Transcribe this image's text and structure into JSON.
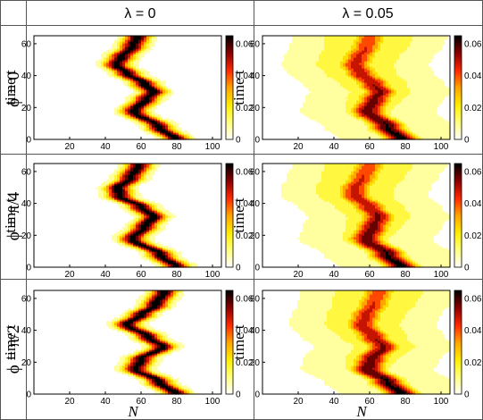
{
  "column_headers": [
    "λ = 0",
    "λ = 0.05"
  ],
  "row_headers": [
    "ϕ = 0",
    "ϕ = π/4",
    "ϕ = π/2"
  ],
  "y_axis_label": "time  t",
  "x_axis_label": "N",
  "colors": {
    "grid_line": "#555555",
    "axis": "#000000",
    "colormap": [
      "#ffffff",
      "#ffff80",
      "#ffee00",
      "#ffa500",
      "#ff2a00",
      "#8b0000",
      "#000000"
    ]
  },
  "chart_data": [
    {
      "type": "heatmap",
      "row": 0,
      "col": 0,
      "lambda": 0,
      "phi": "0",
      "xlim": [
        0,
        105
      ],
      "ylim": [
        0,
        65
      ],
      "xticks": [
        20,
        40,
        60,
        80,
        100
      ],
      "yticks": [
        0,
        20,
        40,
        60
      ],
      "colorbar": {
        "ticks": [
          0,
          0.02,
          0.04,
          0.06
        ],
        "tick_labels": [
          "0",
          "0.02",
          "0.04",
          "0.06"
        ],
        "max": 0.065
      },
      "ridge": [
        [
          0,
          80
        ],
        [
          8,
          70
        ],
        [
          18,
          56
        ],
        [
          26,
          63
        ],
        [
          30,
          67
        ],
        [
          35,
          62
        ],
        [
          42,
          52
        ],
        [
          47,
          46
        ],
        [
          52,
          49
        ],
        [
          58,
          55
        ],
        [
          65,
          58
        ]
      ],
      "width": 5.0,
      "peak": 0.065,
      "halo_spread": 0
    },
    {
      "type": "heatmap",
      "row": 0,
      "col": 1,
      "lambda": 0.05,
      "phi": "0",
      "xlim": [
        0,
        105
      ],
      "ylim": [
        0,
        65
      ],
      "xticks": [
        20,
        40,
        60,
        80,
        100
      ],
      "yticks": [
        0,
        20,
        40,
        60
      ],
      "colorbar": {
        "ticks": [
          0,
          0.02,
          0.04,
          0.06
        ],
        "tick_labels": [
          "0",
          "0.02",
          "0.04",
          "0.06"
        ],
        "max": 0.065
      },
      "ridge": [
        [
          0,
          78
        ],
        [
          8,
          70
        ],
        [
          18,
          59
        ],
        [
          26,
          63
        ],
        [
          30,
          66
        ],
        [
          35,
          62
        ],
        [
          42,
          55
        ],
        [
          47,
          52
        ],
        [
          52,
          54
        ],
        [
          58,
          58
        ],
        [
          65,
          60
        ]
      ],
      "width": 6.5,
      "peak": 0.065,
      "halo_spread": 24
    },
    {
      "type": "heatmap",
      "row": 1,
      "col": 0,
      "lambda": 0,
      "phi": "π/4",
      "xlim": [
        0,
        105
      ],
      "ylim": [
        0,
        65
      ],
      "xticks": [
        20,
        40,
        60,
        80,
        100
      ],
      "yticks": [
        0,
        20,
        40,
        60
      ],
      "colorbar": {
        "ticks": [
          0,
          0.02,
          0.04,
          0.06
        ],
        "tick_labels": [
          "0",
          "0.02",
          "0.04",
          "0.06"
        ],
        "max": 0.065
      },
      "ridge": [
        [
          0,
          80
        ],
        [
          8,
          71
        ],
        [
          18,
          55
        ],
        [
          26,
          62
        ],
        [
          32,
          67
        ],
        [
          38,
          60
        ],
        [
          45,
          48
        ],
        [
          50,
          47
        ],
        [
          56,
          54
        ],
        [
          65,
          59
        ]
      ],
      "width": 5.0,
      "peak": 0.065,
      "halo_spread": 0
    },
    {
      "type": "heatmap",
      "row": 1,
      "col": 1,
      "lambda": 0.05,
      "phi": "π/4",
      "xlim": [
        0,
        105
      ],
      "ylim": [
        0,
        65
      ],
      "xticks": [
        20,
        40,
        60,
        80,
        100
      ],
      "yticks": [
        0,
        20,
        40,
        60
      ],
      "colorbar": {
        "ticks": [
          0,
          0.02,
          0.04,
          0.06
        ],
        "tick_labels": [
          "0",
          "0.02",
          "0.04",
          "0.06"
        ],
        "max": 0.065
      },
      "ridge": [
        [
          0,
          78
        ],
        [
          8,
          70
        ],
        [
          18,
          58
        ],
        [
          26,
          62
        ],
        [
          32,
          65
        ],
        [
          38,
          60
        ],
        [
          45,
          52
        ],
        [
          50,
          52
        ],
        [
          56,
          56
        ],
        [
          65,
          60
        ]
      ],
      "width": 6.5,
      "peak": 0.065,
      "halo_spread": 24
    },
    {
      "type": "heatmap",
      "row": 2,
      "col": 0,
      "lambda": 0,
      "phi": "π/2",
      "xlim": [
        0,
        105
      ],
      "ylim": [
        0,
        65
      ],
      "xticks": [
        20,
        40,
        60,
        80,
        100
      ],
      "yticks": [
        0,
        20,
        40,
        60
      ],
      "colorbar": {
        "ticks": [
          0,
          0.02,
          0.04,
          0.06
        ],
        "tick_labels": [
          "0",
          "0.02",
          "0.04",
          "0.06"
        ],
        "max": 0.065
      },
      "ridge": [
        [
          0,
          80
        ],
        [
          8,
          70
        ],
        [
          16,
          57
        ],
        [
          22,
          60
        ],
        [
          30,
          72
        ],
        [
          36,
          64
        ],
        [
          44,
          52
        ],
        [
          50,
          60
        ],
        [
          56,
          68
        ],
        [
          65,
          73
        ]
      ],
      "width": 5.0,
      "peak": 0.065,
      "halo_spread": 0
    },
    {
      "type": "heatmap",
      "row": 2,
      "col": 1,
      "lambda": 0.05,
      "phi": "π/2",
      "xlim": [
        0,
        105
      ],
      "ylim": [
        0,
        65
      ],
      "xticks": [
        20,
        40,
        60,
        80,
        100
      ],
      "yticks": [
        0,
        20,
        40,
        60
      ],
      "colorbar": {
        "ticks": [
          0,
          0.02,
          0.04,
          0.06
        ],
        "tick_labels": [
          "0",
          "0.02",
          "0.04",
          "0.06"
        ],
        "max": 0.065
      },
      "ridge": [
        [
          0,
          78
        ],
        [
          8,
          70
        ],
        [
          16,
          59
        ],
        [
          22,
          61
        ],
        [
          30,
          68
        ],
        [
          36,
          62
        ],
        [
          44,
          56
        ],
        [
          50,
          58
        ],
        [
          56,
          62
        ],
        [
          65,
          65
        ]
      ],
      "width": 6.5,
      "peak": 0.065,
      "halo_spread": 24
    }
  ]
}
